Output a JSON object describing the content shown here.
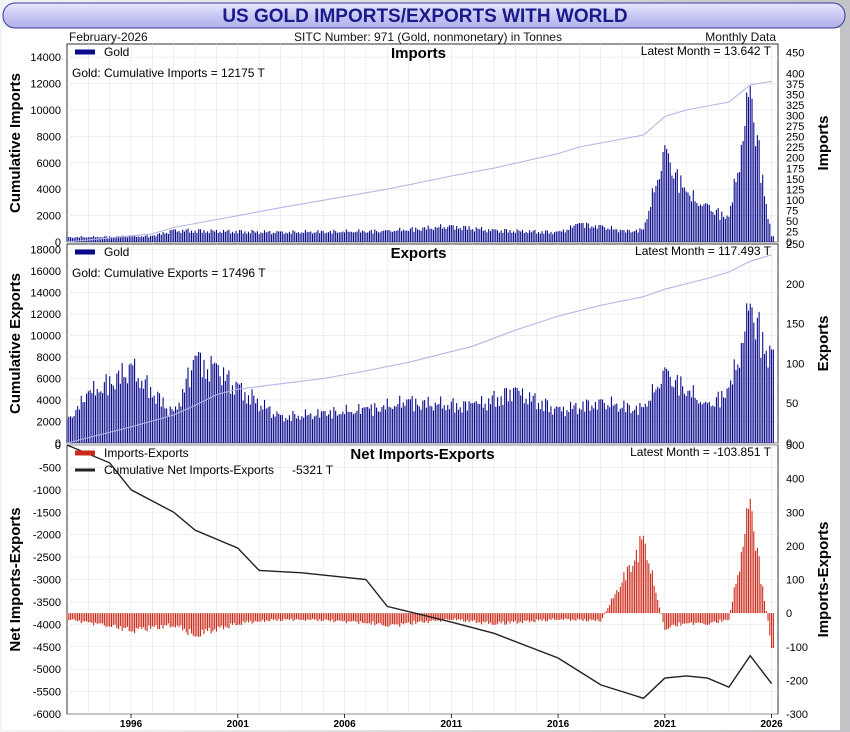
{
  "header": {
    "title": "US GOLD IMPORTS/EXPORTS WITH WORLD",
    "date": "February-2026",
    "sitc": "SITC Number: 971 (Gold, nonmonetary) in Tonnes",
    "frequency": "Monthly Data"
  },
  "colors": {
    "title_text": "#1a1a8a",
    "bars": "#0a0a8a",
    "cum_line": "#b6b6e6",
    "net_bars": "#cc2a1a",
    "net_line": "#222222",
    "frame": "#c8c8cc"
  },
  "chart_data": [
    {
      "type": "bar",
      "panel": "imports",
      "title": "Imports",
      "ylabel_left": "Cumulative Imports",
      "ylabel_right": "Imports",
      "legend": [
        {
          "name": "Gold",
          "color": "#0a0a8a"
        }
      ],
      "cumulative_note": "Gold: Cumulative Imports = 12175 T",
      "latest_note": "Latest Month = 13.642 T",
      "ylim_left": [
        0,
        15000
      ],
      "left_ticks": [
        "0",
        "2000",
        "4000",
        "6000",
        "8000",
        "10000",
        "12000",
        "14000"
      ],
      "ylim_right": [
        0,
        470
      ],
      "right_ticks": [
        "0",
        "25",
        "50",
        "75",
        "100",
        "125",
        "150",
        "175",
        "200",
        "225",
        "250",
        "275",
        "300",
        "325",
        "350",
        "375",
        "400",
        "450"
      ],
      "x": [
        "1993",
        "1997",
        "1998",
        "2003",
        "2008",
        "2011",
        "2013",
        "2016",
        "2017",
        "2018",
        "2019",
        "2020",
        "2021",
        "2022",
        "2023",
        "2024",
        "2025",
        "2026"
      ],
      "values": [
        12,
        15,
        30,
        25,
        28,
        40,
        30,
        25,
        45,
        40,
        28,
        30,
        230,
        120,
        90,
        60,
        370,
        13.642
      ],
      "cumulative": [
        0,
        620,
        1100,
        2600,
        4000,
        5000,
        5600,
        6700,
        7200,
        7500,
        7800,
        8100,
        9500,
        10000,
        10300,
        10600,
        11900,
        12175
      ]
    },
    {
      "type": "bar",
      "panel": "exports",
      "title": "Exports",
      "ylabel_left": "Cumulative Exports",
      "ylabel_right": "Exports",
      "legend": [
        {
          "name": "Gold",
          "color": "#0a0a8a"
        }
      ],
      "cumulative_note": "Gold: Cumulative Exports = 17496 T",
      "latest_note": "Latest Month = 117.493 T",
      "ylim_left": [
        0,
        18500
      ],
      "left_ticks": [
        "0",
        "2000",
        "4000",
        "6000",
        "8000",
        "10000",
        "12000",
        "14000",
        "16000",
        "18000"
      ],
      "ylim_right": [
        0,
        250
      ],
      "right_ticks": [
        "0",
        "50",
        "100",
        "150",
        "200",
        "250"
      ],
      "x": [
        "1993",
        "1994",
        "1996",
        "1998",
        "1999",
        "2000",
        "2001",
        "2003",
        "2005",
        "2007",
        "2009",
        "2012",
        "2014",
        "2016",
        "2018",
        "2020",
        "2021",
        "2023",
        "2024",
        "2025",
        "2026"
      ],
      "values": [
        30,
        65,
        100,
        40,
        110,
        100,
        75,
        35,
        40,
        45,
        55,
        50,
        70,
        45,
        55,
        45,
        95,
        50,
        70,
        175,
        117.493
      ],
      "cumulative": [
        0,
        500,
        1500,
        2600,
        3500,
        4500,
        5000,
        5500,
        6000,
        6700,
        7500,
        9000,
        10500,
        11800,
        12800,
        13600,
        14300,
        15300,
        15900,
        16900,
        17496
      ]
    },
    {
      "type": "bar",
      "panel": "net",
      "title": "Net Imports-Exports",
      "ylabel_left": "Net Imports-Exports",
      "ylabel_right": "Imports-Exports",
      "legend": [
        {
          "name": "Imports-Exports",
          "color": "#cc2a1a"
        },
        {
          "name": "Cumulative Net Imports-Exports",
          "color": "#222222"
        }
      ],
      "cumulative_note": "-5321 T",
      "latest_note": "Latest Month = -103.851 T",
      "ylim_left": [
        -6000,
        0
      ],
      "left_ticks": [
        "0",
        "-500",
        "-1000",
        "-1500",
        "-2000",
        "-2500",
        "-3000",
        "-3500",
        "-4000",
        "-4500",
        "-5000",
        "-5500",
        "-6000"
      ],
      "ylim_right": [
        -300,
        500
      ],
      "right_ticks": [
        "500",
        "400",
        "300",
        "200",
        "100",
        "0",
        "-100",
        "-200",
        "-300"
      ],
      "x": [
        "1993",
        "1995",
        "1996",
        "1998",
        "1999",
        "2001",
        "2002",
        "2004",
        "2007",
        "2008",
        "2011",
        "2013",
        "2016",
        "2018",
        "2020",
        "2021",
        "2022",
        "2023",
        "2024",
        "2025",
        "2026"
      ],
      "values": [
        -20,
        -40,
        -55,
        -40,
        -70,
        -35,
        -25,
        -20,
        -30,
        -40,
        -20,
        -35,
        -20,
        -25,
        230,
        -50,
        -30,
        -35,
        -20,
        340,
        -103.851
      ],
      "cumulative": [
        0,
        -400,
        -1000,
        -1500,
        -1900,
        -2300,
        -2800,
        -2850,
        -3000,
        -3600,
        -3950,
        -4200,
        -4750,
        -5350,
        -5650,
        -5200,
        -5150,
        -5200,
        -5400,
        -4700,
        -5321
      ],
      "xlabels": [
        "1996",
        "2001",
        "2006",
        "2011",
        "2016",
        "2021",
        "2026"
      ]
    }
  ]
}
